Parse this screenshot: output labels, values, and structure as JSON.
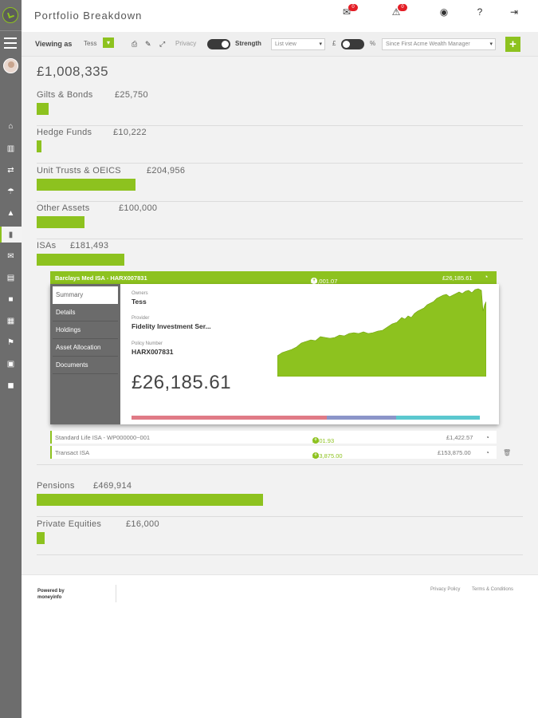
{
  "header": {
    "title": "Portfolio Breakdown",
    "messages_count": "0",
    "alerts_count": "0"
  },
  "toolbar": {
    "viewing_as_label": "Viewing as",
    "viewing_as_value": "Tess",
    "privacy_label": "Privacy",
    "strength_label": "Strength",
    "view_select": "List view",
    "currency_symbol": "£",
    "percent_symbol": "%",
    "period_select": "Since First Acme Wealth Manager",
    "add_label": "+"
  },
  "portfolio": {
    "total": "£1,008,335",
    "assets": [
      {
        "name": "Gilts & Bonds",
        "value": "£25,750",
        "share": 0.025
      },
      {
        "name": "Hedge Funds",
        "value": "£10,222",
        "share": 0.01
      },
      {
        "name": "Unit Trusts & OEICS",
        "value": "£204,956",
        "share": 0.203
      },
      {
        "name": "Other Assets",
        "value": "£100,000",
        "share": 0.099
      },
      {
        "name": "ISAs",
        "value": "£181,493",
        "share": 0.18
      },
      {
        "name": "Pensions",
        "value": "£469,914",
        "share": 0.466
      },
      {
        "name": "Private Equities",
        "value": "£16,000",
        "share": 0.016
      }
    ]
  },
  "isa_detail": {
    "header_name": "Barclays Med ISA - HARX007831",
    "header_contrib": "£6,001.07",
    "header_value": "£26,185.61",
    "tabs": [
      "Summary",
      "Details",
      "Holdings",
      "Asset Allocation",
      "Documents"
    ],
    "owners_label": "Owners",
    "owners_value": "Tess",
    "provider_label": "Provider",
    "provider_value": "Fidelity Investment Ser...",
    "policy_label": "Policy Number",
    "policy_value": "HARX007831",
    "amount": "£26,185.61",
    "allocation": [
      {
        "share": 0.56,
        "color": "#e07a86"
      },
      {
        "share": 0.2,
        "color": "#8b95c9"
      },
      {
        "share": 0.24,
        "color": "#5bc8cf"
      }
    ],
    "sub_accounts": [
      {
        "name": "Standard Life ISA - WP000000~001",
        "contrib": "£501.93",
        "value": "£1,422.57"
      },
      {
        "name": "Transact ISA",
        "contrib": "£53,875.00",
        "value": "£153,875.00"
      }
    ]
  },
  "footer": {
    "powered_line1": "Powered by",
    "powered_line2": "moneyinfo",
    "privacy_link": "Privacy Policy",
    "terms_link": "Terms & Conditions"
  },
  "colors": {
    "accent": "#8dc21f",
    "sidebar": "#6d6d6d",
    "badge": "#e41e26"
  }
}
